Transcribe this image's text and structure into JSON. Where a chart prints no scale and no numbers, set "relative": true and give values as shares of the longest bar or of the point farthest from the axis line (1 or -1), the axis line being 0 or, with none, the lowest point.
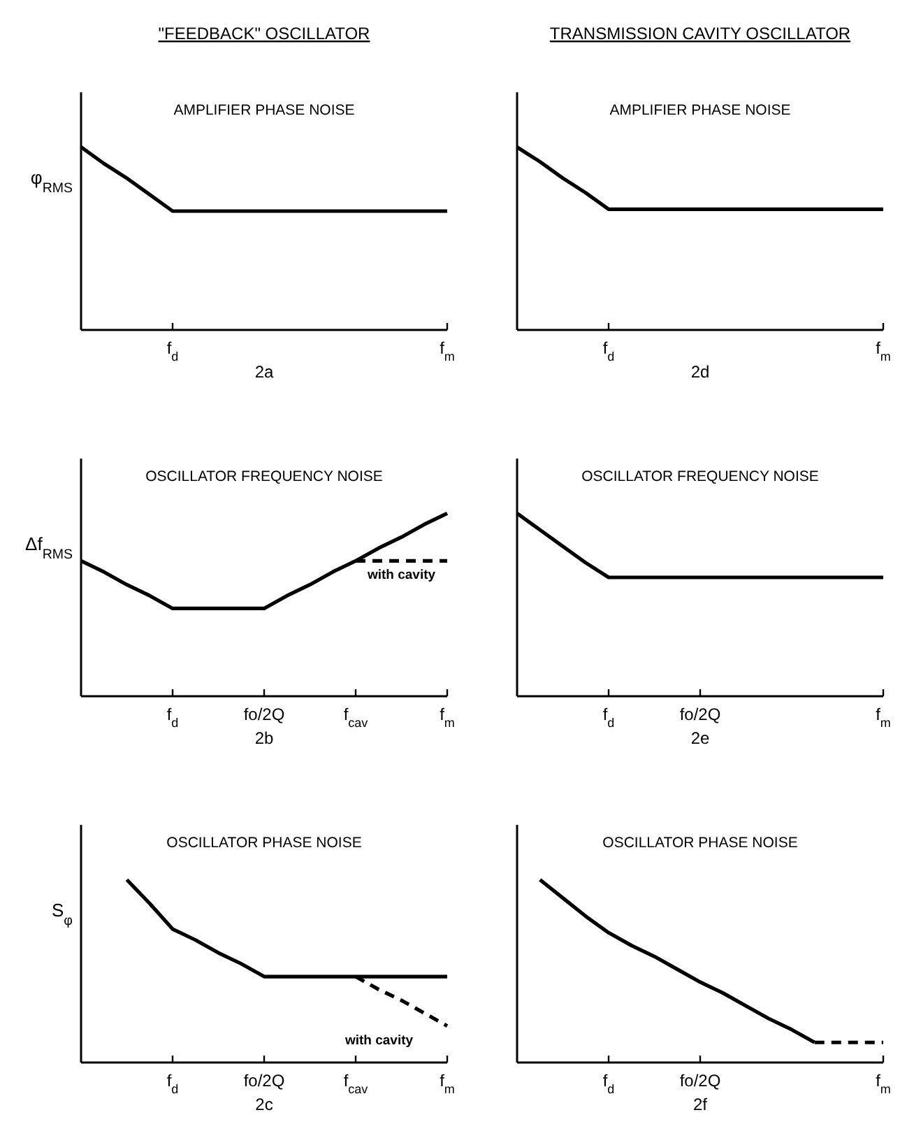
{
  "chart_data": [
    {
      "type": "line",
      "subtitle": "\"FEEDBACK\" OSCILLATOR",
      "title": "AMPLIFIER PHASE NOISE",
      "ylabel": "φ$_{RMS}$",
      "xlabel": "2a",
      "relative": true,
      "marker": "none",
      "categories": [
        null,
        null,
        null,
        null,
        "f$_{d}$",
        null,
        null,
        null,
        null,
        null,
        null,
        null,
        null,
        null,
        null,
        null,
        "f$_{m}$"
      ],
      "series": [
        {
          "color": "#000000",
          "line_style": "solid",
          "values": [
            1,
            0.91,
            0.83,
            0.74,
            0.65,
            0.65,
            0.65,
            0.65,
            0.65,
            0.65,
            0.65,
            0.65,
            0.65,
            0.65,
            0.65,
            0.65,
            0.65
          ]
        }
      ]
    },
    {
      "type": "line",
      "subtitle": "TRANSMISSION CAVITY OSCILLATOR",
      "title": "AMPLIFIER PHASE NOISE",
      "xlabel": "2d",
      "relative": true,
      "marker": "none",
      "categories": [
        null,
        null,
        null,
        null,
        "f$_{d}$",
        null,
        null,
        null,
        null,
        null,
        null,
        null,
        null,
        null,
        null,
        null,
        "f$_{m}$"
      ],
      "series": [
        {
          "color": "#000000",
          "line_style": "solid",
          "values": [
            1,
            0.92,
            0.83,
            0.75,
            0.66,
            0.66,
            0.66,
            0.66,
            0.66,
            0.66,
            0.66,
            0.66,
            0.66,
            0.66,
            0.66,
            0.66,
            0.66
          ]
        }
      ]
    },
    {
      "type": "line",
      "title": "OSCILLATOR FREQUENCY NOISE",
      "ylabel": "Δf$_{RMS}$",
      "xlabel": "2b",
      "relative": true,
      "marker": "none",
      "categories": [
        null,
        null,
        null,
        null,
        "f$_{d}$",
        null,
        null,
        null,
        "fo/2Q",
        null,
        null,
        null,
        "f$_{cav}$",
        null,
        null,
        null,
        "f$_{m}$"
      ],
      "annotations": [
        "with cavity"
      ],
      "series": [
        {
          "color": "#000000",
          "line_style": "solid",
          "values": [
            0.74,
            0.68,
            0.61,
            0.55,
            0.48,
            0.48,
            0.48,
            0.48,
            0.48,
            0.55,
            0.61,
            0.68,
            0.74,
            0.81,
            0.87,
            0.94,
            1
          ]
        },
        {
          "color": "#000000",
          "line_style": "dashed",
          "values": [
            null,
            null,
            null,
            null,
            null,
            null,
            null,
            null,
            null,
            null,
            null,
            null,
            0.74,
            0.74,
            0.74,
            0.74,
            0.74
          ]
        }
      ]
    },
    {
      "type": "line",
      "title": "OSCILLATOR FREQUENCY NOISE",
      "xlabel": "2e",
      "relative": true,
      "marker": "none",
      "categories": [
        null,
        null,
        null,
        null,
        "f$_{d}$",
        null,
        null,
        null,
        "fo/2Q",
        null,
        null,
        null,
        null,
        null,
        null,
        null,
        "f$_{m}$"
      ],
      "series": [
        {
          "color": "#000000",
          "line_style": "solid",
          "values": [
            1,
            0.91,
            0.82,
            0.73,
            0.65,
            0.65,
            0.65,
            0.65,
            0.65,
            0.65,
            0.65,
            0.65,
            0.65,
            0.65,
            0.65,
            0.65,
            0.65
          ]
        }
      ]
    },
    {
      "type": "line",
      "title": "OSCILLATOR PHASE NOISE",
      "ylabel": "S$_{φ}$",
      "xlabel": "2c",
      "relative": true,
      "marker": "none",
      "categories": [
        null,
        null,
        null,
        null,
        "f$_{d}$",
        null,
        null,
        null,
        "fo/2Q",
        null,
        null,
        null,
        "f$_{cav}$",
        null,
        null,
        null,
        "f$_{m}$"
      ],
      "annotations": [
        "with cavity"
      ],
      "series": [
        {
          "color": "#000000",
          "line_style": "solid",
          "values": [
            null,
            null,
            1,
            0.87,
            0.73,
            0.67,
            0.6,
            0.54,
            0.47,
            0.47,
            0.47,
            0.47,
            0.47,
            0.47,
            0.47,
            0.47,
            0.47
          ]
        },
        {
          "color": "#000000",
          "line_style": "dashed",
          "values": [
            null,
            null,
            null,
            null,
            null,
            null,
            null,
            null,
            null,
            null,
            null,
            null,
            0.47,
            0.4,
            0.34,
            0.27,
            0.2
          ]
        }
      ]
    },
    {
      "type": "line",
      "title": "OSCILLATOR PHASE NOISE",
      "xlabel": "2f",
      "relative": true,
      "marker": "none",
      "categories": [
        null,
        null,
        null,
        null,
        "f$_{d}$",
        null,
        null,
        null,
        "fo/2Q",
        null,
        null,
        null,
        null,
        null,
        null,
        null,
        "f$_{m}$"
      ],
      "series": [
        {
          "color": "#000000",
          "line_style": "solid",
          "values": [
            null,
            1,
            0.9,
            0.8,
            0.71,
            0.64,
            0.58,
            0.51,
            0.44,
            0.38,
            0.31,
            0.24,
            0.18,
            0.11,
            null,
            null,
            null
          ]
        },
        {
          "color": "#000000",
          "line_style": "dashed",
          "values": [
            null,
            null,
            null,
            null,
            null,
            null,
            null,
            null,
            null,
            null,
            null,
            null,
            null,
            0.11,
            0.11,
            0.11,
            0.11
          ]
        }
      ]
    }
  ]
}
